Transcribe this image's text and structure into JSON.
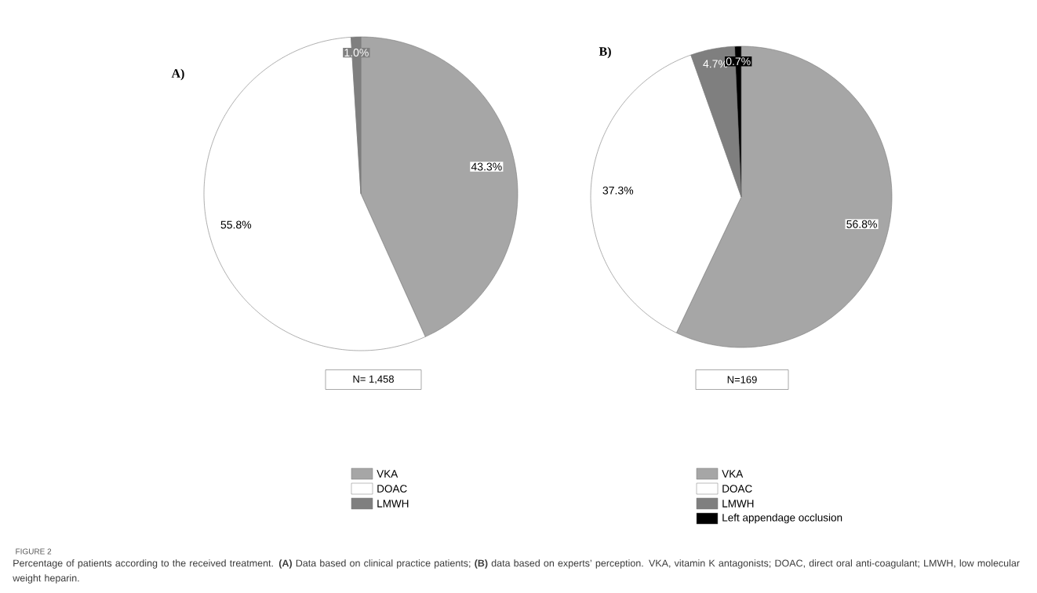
{
  "chart_data": [
    {
      "type": "pie",
      "title": "A)",
      "categories": [
        "VKA",
        "DOAC",
        "LMWH"
      ],
      "values": [
        43.3,
        55.8,
        1.0
      ],
      "colors": [
        "#a6a6a6",
        "#ffffff",
        "#7f7f7f"
      ],
      "value_labels": [
        "43.3%",
        "55.8%",
        "1.0%"
      ],
      "legend": "bottom",
      "annotations": [
        "N= 1,458",
        "FIGURE 2",
        "Percentage of patients according to the received treatment. **(A)** Data based on clinical practice patients; **(B)** data based on experts’ perception. VKA, vitamin K antagonists; DOAC, direct oral anti-coagulant; LMWH, low molecular weight heparin."
      ]
    },
    {
      "type": "pie",
      "title": "B)",
      "categories": [
        "VKA",
        "DOAC",
        "LMWH",
        "Left appendage occlusion"
      ],
      "values": [
        56.8,
        37.3,
        4.7,
        0.7
      ],
      "colors": [
        "#a6a6a6",
        "#ffffff",
        "#7f7f7f",
        "#000000"
      ],
      "value_labels": [
        "56.8%",
        "37.3%",
        "4.7%",
        "0.7%"
      ],
      "legend": "bottom",
      "annotations": [
        "N=169"
      ]
    }
  ]
}
